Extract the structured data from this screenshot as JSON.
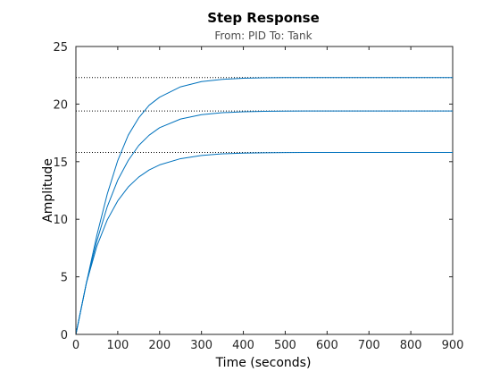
{
  "chart_data": {
    "type": "line",
    "title": "Step Response",
    "subtitle": "From: PID  To: Tank",
    "xlabel": "Time (seconds)",
    "ylabel": "Amplitude",
    "xlim": [
      0,
      900
    ],
    "ylim": [
      0,
      25
    ],
    "x_ticks": [
      "0",
      "100",
      "200",
      "300",
      "400",
      "500",
      "600",
      "700",
      "800",
      "900"
    ],
    "y_ticks": [
      "0",
      "5",
      "10",
      "15",
      "20",
      "25"
    ],
    "grid": false,
    "legend": "none",
    "line_color": "#0072bd",
    "series": [
      {
        "steady_state": 15.8,
        "x": [
          0,
          25,
          50,
          75,
          100,
          125,
          150,
          175,
          200,
          250,
          300,
          350,
          400,
          450,
          500,
          550,
          600,
          700,
          800,
          900
        ],
        "values": [
          0,
          4.45,
          7.65,
          9.95,
          11.6,
          12.8,
          13.66,
          14.28,
          14.72,
          15.26,
          15.54,
          15.68,
          15.74,
          15.77,
          15.79,
          15.8,
          15.8,
          15.8,
          15.8,
          15.8
        ]
      },
      {
        "steady_state": 19.4,
        "x": [
          0,
          25,
          50,
          75,
          100,
          125,
          150,
          175,
          200,
          250,
          300,
          350,
          400,
          450,
          500,
          550,
          600,
          700,
          800,
          900
        ],
        "values": [
          0,
          4.45,
          8.1,
          11.1,
          13.4,
          15.1,
          16.4,
          17.3,
          17.95,
          18.7,
          19.08,
          19.25,
          19.33,
          19.37,
          19.39,
          19.4,
          19.4,
          19.4,
          19.4,
          19.4
        ]
      },
      {
        "steady_state": 22.3,
        "x": [
          0,
          25,
          50,
          75,
          100,
          125,
          150,
          175,
          200,
          250,
          300,
          350,
          400,
          450,
          500,
          550,
          600,
          700,
          800,
          900
        ],
        "values": [
          0,
          4.45,
          8.6,
          12.2,
          15.1,
          17.3,
          18.8,
          19.9,
          20.6,
          21.5,
          21.95,
          22.15,
          22.24,
          22.28,
          22.3,
          22.3,
          22.3,
          22.3,
          22.3,
          22.3
        ]
      }
    ]
  }
}
